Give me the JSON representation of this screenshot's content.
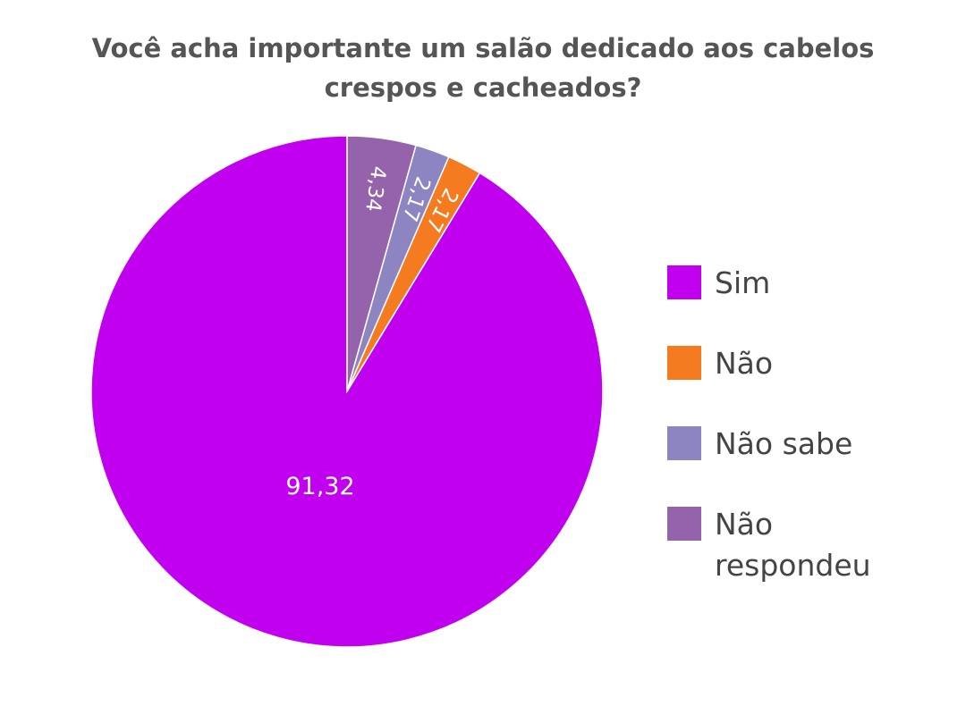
{
  "chart_data": {
    "type": "pie",
    "title": "Você acha importante um salão dedicado aos cabelos crespos e cacheados?",
    "categories": [
      "Sim",
      "Não",
      "Não sabe",
      "Não respondeu"
    ],
    "values": [
      91.32,
      2.17,
      2.17,
      4.34
    ],
    "value_labels": [
      "91,32",
      "2,17",
      "2,17",
      "4,34"
    ],
    "colors": [
      "#C100F0",
      "#F47B20",
      "#8C85C2",
      "#9563AB"
    ],
    "legend_position": "right",
    "start_angle": "12 o'clock, counterclockwise"
  }
}
